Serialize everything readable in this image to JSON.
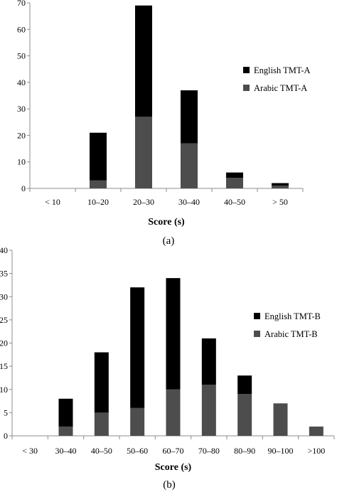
{
  "colors": {
    "english": "#000000",
    "arabic": "#4d4d4d",
    "axis": "#8c8c8c"
  },
  "chart_data": [
    {
      "type": "bar",
      "stacked": true,
      "panel_label": "(a)",
      "xlabel": "Score (s)",
      "ylabel": "",
      "ylim": [
        0,
        70
      ],
      "yticks": [
        0,
        10,
        20,
        30,
        40,
        50,
        60,
        70
      ],
      "categories": [
        "< 10",
        "10–20",
        "20–30",
        "30–40",
        "40–50",
        "> 50"
      ],
      "series": [
        {
          "name": "Arabic TMT-A",
          "values": [
            0,
            3,
            27,
            17,
            4,
            1
          ]
        },
        {
          "name": "English TMT-A",
          "values": [
            0,
            18,
            42,
            20,
            2,
            1
          ]
        }
      ],
      "legend": {
        "placement": "right",
        "entries": [
          "English TMT-A",
          "Arabic TMT-A"
        ]
      },
      "grid": false
    },
    {
      "type": "bar",
      "stacked": true,
      "panel_label": "(b)",
      "xlabel": "Score (s)",
      "ylabel": "",
      "ylim": [
        0,
        40
      ],
      "yticks": [
        0,
        5,
        10,
        15,
        20,
        25,
        30,
        35,
        40
      ],
      "categories": [
        "< 30",
        "30–40",
        "40–50",
        "50–60",
        "60–70",
        "70–80",
        "80–90",
        "90–100",
        ">100"
      ],
      "series": [
        {
          "name": "Arabic TMT-B",
          "values": [
            0,
            2,
            5,
            6,
            10,
            11,
            9,
            7,
            2
          ]
        },
        {
          "name": "English TMT-B",
          "values": [
            0,
            6,
            13,
            26,
            24,
            10,
            4,
            0,
            0
          ]
        }
      ],
      "legend": {
        "placement": "right",
        "entries": [
          "English TMT-B",
          "Arabic TMT-B"
        ]
      },
      "grid": false
    }
  ]
}
